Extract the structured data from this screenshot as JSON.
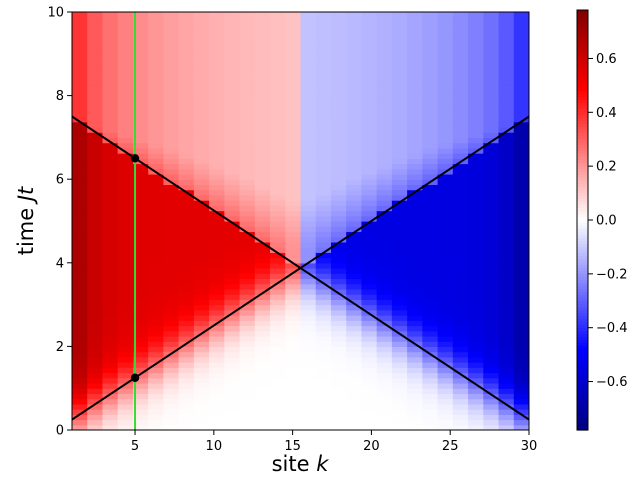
{
  "chart_data": {
    "type": "heatmap",
    "title": "",
    "xlabel": "site k",
    "ylabel": "time Jt",
    "xlabel_parts": [
      "site ",
      "k"
    ],
    "ylabel_parts": [
      "time ",
      "Jt"
    ],
    "xlim": [
      1,
      30
    ],
    "ylim": [
      0,
      10
    ],
    "xticks": [
      5,
      10,
      15,
      20,
      25,
      30
    ],
    "yticks": [
      0,
      2,
      4,
      6,
      8,
      10
    ],
    "grid": false,
    "colormap": "seismic",
    "colorbar": {
      "range": [
        -0.78,
        0.78
      ],
      "ticks": [
        -0.6,
        -0.4,
        -0.2,
        0.0,
        0.2,
        0.4,
        0.6
      ],
      "tick_labels": [
        "−0.6",
        "−0.4",
        "−0.2",
        "0.0",
        "0.2",
        "0.4",
        "0.6"
      ]
    },
    "heatmap_description": "Positive values (red) on left sites inside a light cone, negative values (blue) on right sites, zero outside the cones",
    "lines": [
      {
        "name": "",
        "color": "#000000",
        "points": [
          [
            1,
            7.5
          ],
          [
            30,
            0.25
          ]
        ]
      },
      {
        "name": "",
        "color": "#000000",
        "points": [
          [
            1,
            0.25
          ],
          [
            30,
            7.5
          ]
        ]
      },
      {
        "name": "",
        "color": "#33dd33",
        "points": [
          [
            5,
            0
          ],
          [
            5,
            10
          ]
        ]
      }
    ],
    "markers": [
      {
        "x": 5,
        "y": 6.5,
        "color": "#000000"
      },
      {
        "x": 5,
        "y": 1.25,
        "color": "#000000"
      }
    ]
  }
}
